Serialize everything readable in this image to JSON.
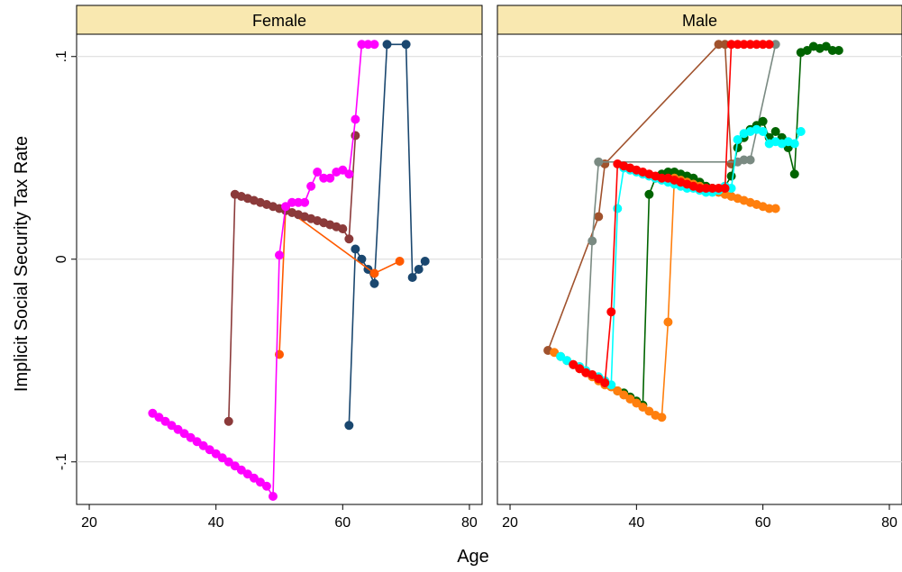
{
  "chart_data": {
    "type": "scatter",
    "xlabel": "Age",
    "ylabel": "Implicit Social Security Tax Rate",
    "xlim": [
      18,
      82
    ],
    "ylim": [
      -0.121,
      0.111
    ],
    "x_ticks": [
      {
        "value": 20,
        "label": "20"
      },
      {
        "value": 40,
        "label": "40"
      },
      {
        "value": 60,
        "label": "60"
      },
      {
        "value": 80,
        "label": "80"
      }
    ],
    "y_ticks": [
      {
        "value": -0.1,
        "label": "-.1"
      },
      {
        "value": 0,
        "label": "0"
      },
      {
        "value": 0.1,
        "label": ".1"
      }
    ],
    "grid": true,
    "panels": [
      {
        "label": "Female",
        "series": [
          {
            "color": "#1a476f",
            "x": [
              61,
              62,
              63,
              64,
              65,
              67,
              70,
              71,
              72,
              73
            ],
            "y": [
              -0.082,
              0.005,
              0.0,
              -0.005,
              -0.012,
              0.106,
              0.106,
              -0.009,
              -0.005,
              -0.001
            ]
          },
          {
            "color": "#ff5a00",
            "x": [
              50,
              51,
              65,
              69
            ],
            "y": [
              -0.047,
              0.025,
              -0.007,
              -0.001
            ]
          },
          {
            "color": "#8b3a3a",
            "x": [
              42,
              43,
              44,
              45,
              46,
              47,
              48,
              49,
              50,
              51,
              52,
              53,
              54,
              55,
              56,
              57,
              58,
              59,
              60,
              61,
              62
            ],
            "y": [
              -0.08,
              0.032,
              0.031,
              0.03,
              0.029,
              0.028,
              0.027,
              0.026,
              0.025,
              0.024,
              0.023,
              0.022,
              0.021,
              0.02,
              0.019,
              0.018,
              0.017,
              0.016,
              0.015,
              0.01,
              0.061
            ]
          },
          {
            "color": "#ff00ff",
            "x": [
              30,
              31,
              32,
              33,
              34,
              35,
              36,
              37,
              38,
              39,
              40,
              41,
              42,
              43,
              44,
              45,
              46,
              47,
              48,
              49,
              50,
              51,
              52,
              53,
              54,
              55,
              56,
              57,
              58,
              59,
              60,
              61,
              62,
              63,
              64,
              65
            ],
            "y": [
              -0.076,
              -0.078,
              -0.08,
              -0.082,
              -0.084,
              -0.086,
              -0.088,
              -0.09,
              -0.092,
              -0.094,
              -0.096,
              -0.098,
              -0.1,
              -0.102,
              -0.104,
              -0.106,
              -0.108,
              -0.11,
              -0.112,
              -0.117,
              0.002,
              0.026,
              0.028,
              0.028,
              0.028,
              0.036,
              0.043,
              0.04,
              0.04,
              0.043,
              0.044,
              0.042,
              0.069,
              0.106,
              0.106,
              0.106
            ]
          }
        ]
      },
      {
        "label": "Male",
        "series": [
          {
            "color": "#a0522d",
            "x": [
              26,
              34,
              35,
              53,
              54,
              55
            ],
            "y": [
              -0.045,
              0.021,
              0.047,
              0.106,
              0.106,
              0.047
            ]
          },
          {
            "color": "#7a8a82",
            "x": [
              32,
              33,
              34,
              56,
              57,
              58,
              62
            ],
            "y": [
              -0.055,
              0.009,
              0.048,
              0.048,
              0.049,
              0.049,
              0.106
            ]
          },
          {
            "color": "#006400",
            "x": [
              37,
              38,
              39,
              40,
              41,
              42,
              43,
              44,
              45,
              46,
              47,
              48,
              49,
              50,
              51,
              52,
              53,
              54,
              55,
              56,
              57,
              58,
              59,
              60,
              61,
              62,
              63,
              64,
              65,
              66,
              67,
              68,
              69,
              70,
              71,
              72
            ],
            "y": [
              -0.065,
              -0.066,
              -0.068,
              -0.07,
              -0.072,
              0.032,
              0.04,
              0.042,
              0.043,
              0.043,
              0.042,
              0.041,
              0.04,
              0.038,
              0.036,
              0.035,
              0.034,
              0.036,
              0.041,
              0.055,
              0.06,
              0.064,
              0.066,
              0.068,
              0.06,
              0.063,
              0.06,
              0.055,
              0.042,
              0.102,
              0.103,
              0.105,
              0.104,
              0.105,
              0.103,
              0.103
            ]
          },
          {
            "color": "#ff7f0e",
            "x": [
              27,
              28,
              29,
              30,
              31,
              32,
              33,
              34,
              35,
              36,
              37,
              38,
              39,
              40,
              41,
              42,
              43,
              44,
              45,
              46,
              47,
              48,
              49,
              50,
              51,
              52,
              53,
              54,
              55,
              56,
              57,
              58,
              59,
              60,
              61,
              62
            ],
            "y": [
              -0.046,
              -0.048,
              -0.05,
              -0.052,
              -0.054,
              -0.056,
              -0.058,
              -0.06,
              -0.062,
              -0.063,
              -0.065,
              -0.067,
              -0.069,
              -0.071,
              -0.073,
              -0.075,
              -0.077,
              -0.078,
              -0.031,
              0.04,
              0.039,
              0.038,
              0.037,
              0.036,
              0.035,
              0.034,
              0.033,
              0.032,
              0.031,
              0.03,
              0.029,
              0.028,
              0.027,
              0.026,
              0.025,
              0.025
            ]
          },
          {
            "color": "#00ffff",
            "x": [
              28,
              29,
              30,
              31,
              32,
              33,
              34,
              35,
              36,
              37,
              38,
              39,
              40,
              41,
              42,
              43,
              44,
              45,
              46,
              47,
              48,
              49,
              50,
              51,
              52,
              53,
              54,
              55,
              56,
              57,
              58,
              59,
              60,
              61,
              62,
              63,
              64,
              65,
              66
            ],
            "y": [
              -0.048,
              -0.05,
              -0.052,
              -0.053,
              -0.055,
              -0.057,
              -0.058,
              -0.06,
              -0.062,
              0.025,
              0.045,
              0.044,
              0.043,
              0.042,
              0.041,
              0.04,
              0.039,
              0.038,
              0.037,
              0.036,
              0.035,
              0.035,
              0.034,
              0.033,
              0.033,
              0.034,
              0.036,
              0.035,
              0.059,
              0.062,
              0.063,
              0.064,
              0.063,
              0.057,
              0.058,
              0.057,
              0.058,
              0.057,
              0.063
            ]
          },
          {
            "color": "#ff0000",
            "x": [
              30,
              31,
              32,
              33,
              34,
              35,
              36,
              37,
              38,
              39,
              40,
              41,
              42,
              43,
              44,
              45,
              46,
              47,
              48,
              49,
              50,
              51,
              52,
              53,
              54,
              55,
              56,
              57,
              58,
              59,
              60,
              61
            ],
            "y": [
              -0.052,
              -0.054,
              -0.056,
              -0.057,
              -0.059,
              -0.061,
              -0.026,
              0.047,
              0.046,
              0.045,
              0.044,
              0.043,
              0.042,
              0.041,
              0.04,
              0.04,
              0.039,
              0.038,
              0.037,
              0.036,
              0.035,
              0.035,
              0.035,
              0.035,
              0.035,
              0.106,
              0.106,
              0.106,
              0.106,
              0.106,
              0.106,
              0.106
            ]
          }
        ]
      }
    ]
  }
}
